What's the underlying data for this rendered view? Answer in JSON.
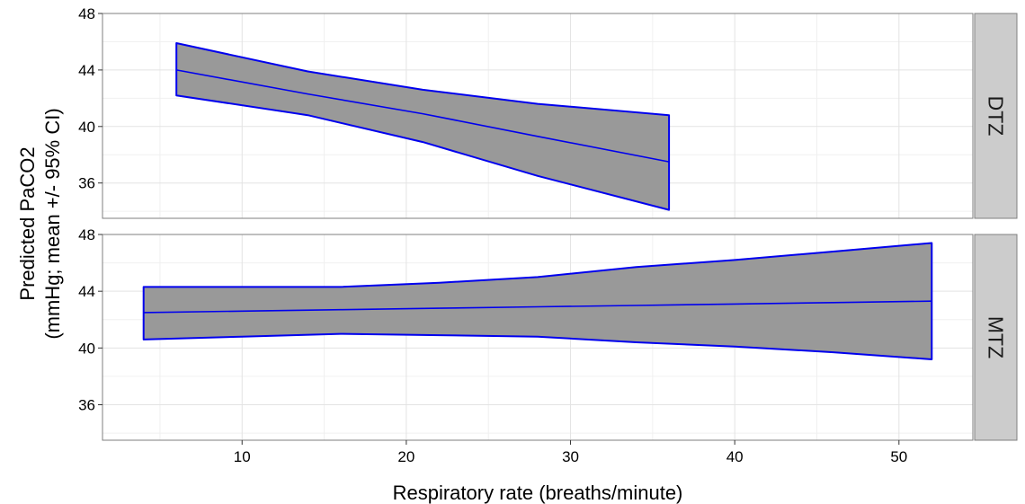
{
  "chart_data": {
    "type": "area",
    "xlabel": "Respiratory rate (breaths/minute)",
    "ylabel": "Predicted PaCO2",
    "ylabel_line2": "(mmHg; mean +/- 95% CI)",
    "xlim": [
      1.5,
      54.5
    ],
    "ylim": [
      33.5,
      48
    ],
    "x_ticks": [
      10,
      20,
      30,
      40,
      50
    ],
    "y_ticks": [
      36,
      40,
      44,
      48
    ],
    "grid": true,
    "colors": {
      "line": "#0000ee",
      "fill": "#999999",
      "strip": "#cccccc"
    },
    "panels": [
      {
        "name": "DTZ",
        "x": [
          6,
          14,
          21,
          28,
          36
        ],
        "mean": [
          44.0,
          42.3,
          40.9,
          39.3,
          37.5
        ],
        "lower": [
          42.2,
          40.8,
          38.9,
          36.5,
          34.1
        ],
        "upper": [
          45.9,
          43.9,
          42.6,
          41.6,
          40.8
        ]
      },
      {
        "name": "MTZ",
        "x": [
          4,
          10,
          16,
          22,
          28,
          34,
          40,
          46,
          52
        ],
        "mean": [
          42.5,
          42.6,
          42.7,
          42.8,
          42.9,
          43.0,
          43.1,
          43.2,
          43.3
        ],
        "lower": [
          40.6,
          40.8,
          41.0,
          40.9,
          40.8,
          40.4,
          40.1,
          39.7,
          39.2
        ],
        "upper": [
          44.3,
          44.3,
          44.3,
          44.6,
          45.0,
          45.7,
          46.2,
          46.8,
          47.4
        ]
      }
    ]
  }
}
